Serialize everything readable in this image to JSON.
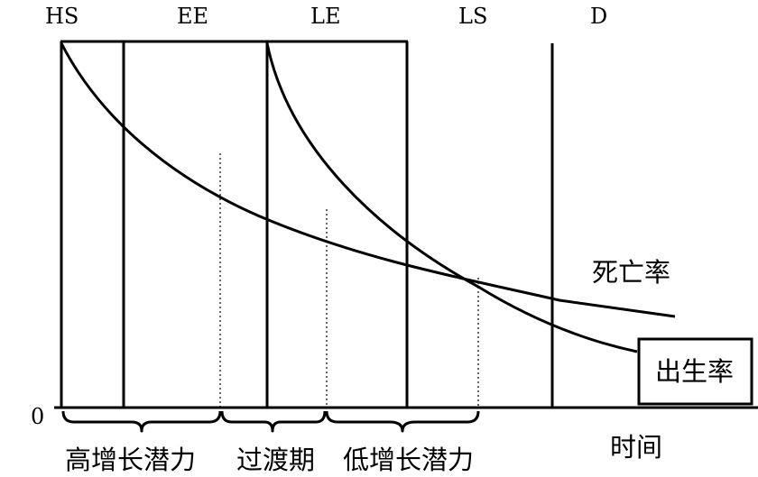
{
  "stage_labels": {
    "hs": "HS",
    "ee": "EE",
    "le": "LE",
    "ls": "LS",
    "d": "D"
  },
  "origin_label": "0",
  "curve_labels": {
    "death_rate": "死亡率",
    "birth_rate": "出生率"
  },
  "x_axis_label": "时间",
  "phase_labels": {
    "high_growth": "高增长潜力",
    "transition": "过渡期",
    "low_growth": "低增长潜力"
  },
  "colors": {
    "ink": "#000000",
    "background": "#ffffff"
  }
}
